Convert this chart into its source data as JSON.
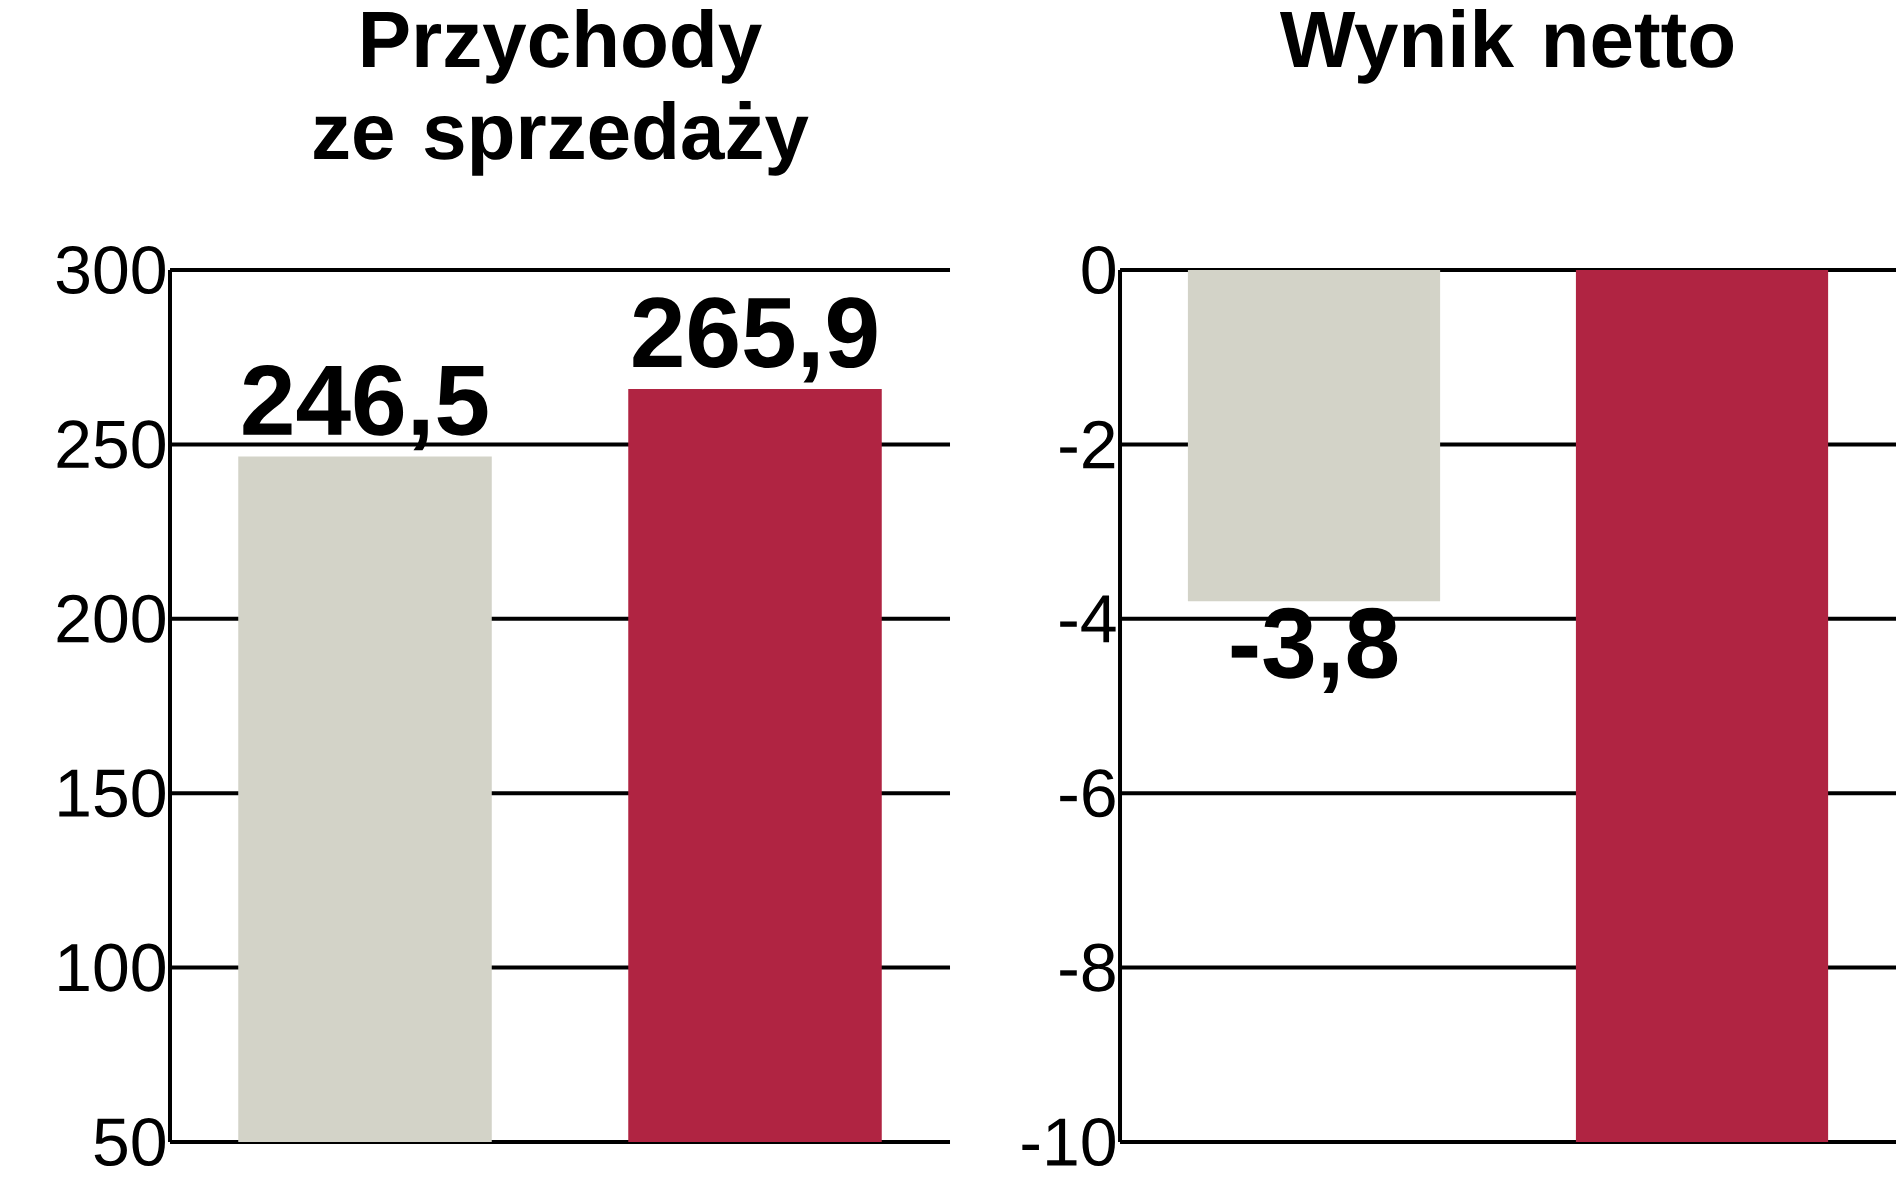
{
  "chart_data": [
    {
      "type": "bar",
      "title": "Przychody ze sprzedaży",
      "categories": [
        null,
        null
      ],
      "values": [
        246.5,
        265.9
      ],
      "colors": [
        "#d3d3c8",
        "#b02442"
      ],
      "value_labels": [
        "246,5",
        "265,9"
      ],
      "ylim": [
        50,
        300
      ],
      "yticks": [
        50,
        100,
        150,
        200,
        250,
        300
      ],
      "grid": "y",
      "tick_labels": "y"
    },
    {
      "type": "bar",
      "title": "Wynik netto",
      "categories": [
        null,
        null
      ],
      "values": [
        -3.8,
        -10
      ],
      "colors": [
        "#d3d3c8",
        "#b02442"
      ],
      "value_labels": [
        "-3,8",
        null
      ],
      "ylim": [
        -10,
        0
      ],
      "yticks": [
        -10,
        -8,
        -6,
        -4,
        -2,
        0
      ],
      "grid": "y",
      "tick_labels": "y"
    }
  ]
}
